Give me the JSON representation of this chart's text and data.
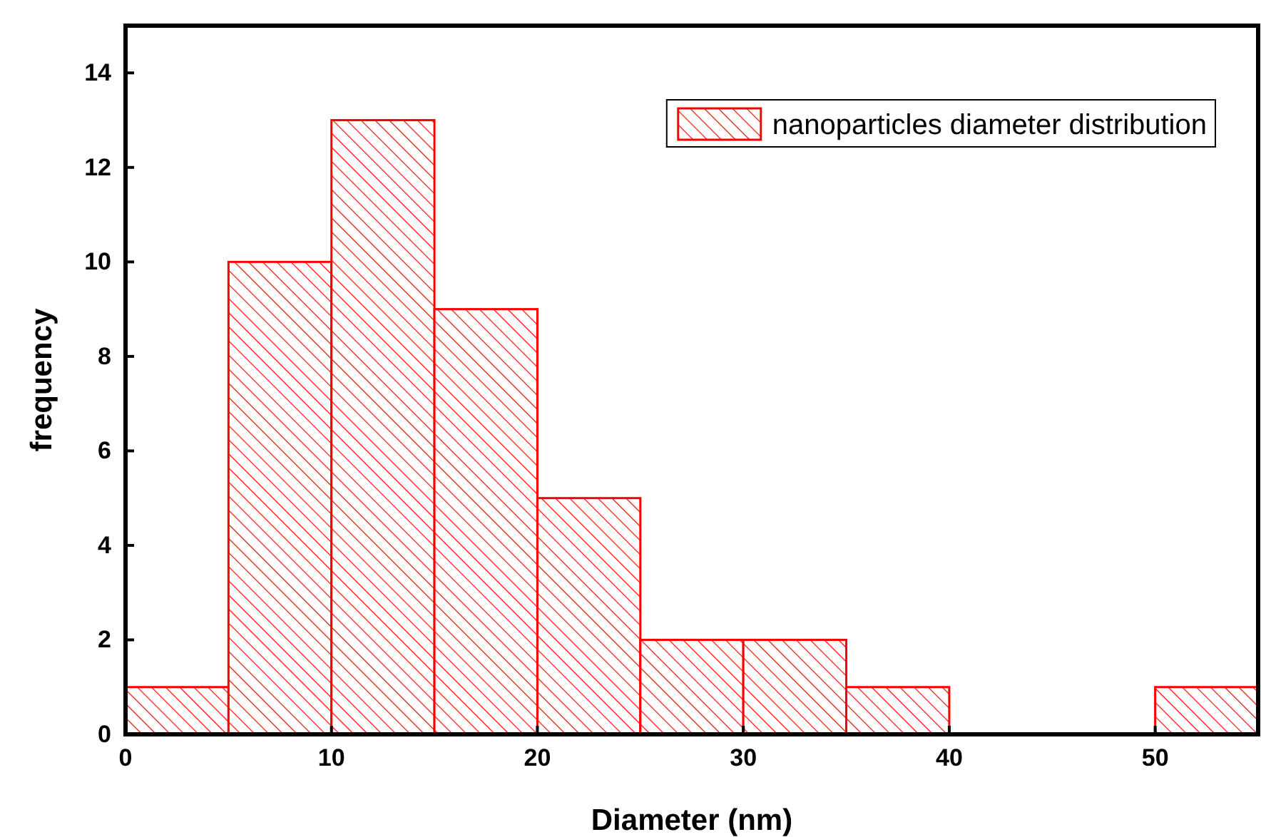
{
  "chart_data": {
    "type": "histogram",
    "xlabel": "Diameter (nm)",
    "ylabel": "frequency",
    "bins": [
      0,
      5,
      10,
      15,
      20,
      25,
      30,
      35,
      40,
      45,
      50,
      55
    ],
    "series": [
      {
        "name": "nanoparticles diameter distribution",
        "color": "#ff0000",
        "values": [
          1,
          10,
          13,
          9,
          5,
          2,
          2,
          1,
          0,
          0,
          1
        ]
      }
    ],
    "xlim": [
      0,
      55
    ],
    "ylim": [
      0,
      15
    ],
    "xticks": [
      0,
      10,
      20,
      30,
      40,
      50
    ],
    "yticks": [
      0,
      2,
      4,
      6,
      8,
      10,
      12,
      14
    ],
    "legend": "top right",
    "grid": false
  }
}
